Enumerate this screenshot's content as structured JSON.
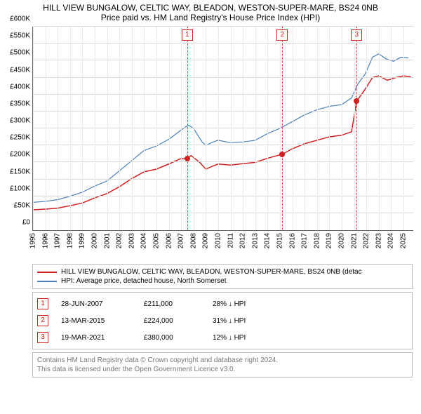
{
  "title": "HILL VIEW BUNGALOW, CELTIC WAY, BLEADON, WESTON-SUPER-MARE, BS24 0NB",
  "subtitle": "Price paid vs. HM Land Registry's House Price Index (HPI)",
  "chart": {
    "type": "line",
    "background_color": "#ffffff",
    "grid_color": "#d9d9d9",
    "grid_color_minor": "#eaeaea",
    "xlim": [
      1995,
      2025.8
    ],
    "ylim": [
      0,
      600000
    ],
    "ytick_step": 50000,
    "xtick_step": 1,
    "ylabel_prefix": "£",
    "ylabel_suffix": "K",
    "yticks": [
      {
        "v": 0,
        "label": "£0"
      },
      {
        "v": 50000,
        "label": "£50K"
      },
      {
        "v": 100000,
        "label": "£100K"
      },
      {
        "v": 150000,
        "label": "£150K"
      },
      {
        "v": 200000,
        "label": "£200K"
      },
      {
        "v": 250000,
        "label": "£250K"
      },
      {
        "v": 300000,
        "label": "£300K"
      },
      {
        "v": 350000,
        "label": "£350K"
      },
      {
        "v": 400000,
        "label": "£400K"
      },
      {
        "v": 450000,
        "label": "£450K"
      },
      {
        "v": 500000,
        "label": "£500K"
      },
      {
        "v": 550000,
        "label": "£550K"
      },
      {
        "v": 600000,
        "label": "£600K"
      }
    ],
    "xticks": [
      1995,
      1996,
      1997,
      1998,
      1999,
      2000,
      2001,
      2002,
      2003,
      2004,
      2005,
      2006,
      2007,
      2008,
      2009,
      2010,
      2011,
      2012,
      2013,
      2014,
      2015,
      2016,
      2017,
      2018,
      2019,
      2020,
      2021,
      2022,
      2023,
      2024,
      2025
    ],
    "series": [
      {
        "id": "property",
        "color": "#d02020",
        "width": 1.5,
        "label": "HILL VIEW BUNGALOW, CELTIC WAY, BLEADON, WESTON-SUPER-MARE, BS24 0NB (detac",
        "points": [
          [
            1995,
            60000
          ],
          [
            1996,
            62000
          ],
          [
            1997,
            65000
          ],
          [
            1998,
            72000
          ],
          [
            1999,
            80000
          ],
          [
            2000,
            95000
          ],
          [
            2001,
            108000
          ],
          [
            2002,
            128000
          ],
          [
            2003,
            152000
          ],
          [
            2004,
            172000
          ],
          [
            2005,
            180000
          ],
          [
            2006,
            195000
          ],
          [
            2006.9,
            210000
          ],
          [
            2007.49,
            211000
          ],
          [
            2007.8,
            220000
          ],
          [
            2008.5,
            200000
          ],
          [
            2009,
            180000
          ],
          [
            2009.5,
            188000
          ],
          [
            2010,
            195000
          ],
          [
            2011,
            192000
          ],
          [
            2012,
            196000
          ],
          [
            2013,
            200000
          ],
          [
            2014,
            212000
          ],
          [
            2015.2,
            224000
          ],
          [
            2016,
            240000
          ],
          [
            2017,
            255000
          ],
          [
            2018,
            265000
          ],
          [
            2019,
            275000
          ],
          [
            2020,
            280000
          ],
          [
            2020.8,
            290000
          ],
          [
            2021.21,
            380000
          ],
          [
            2021.8,
            410000
          ],
          [
            2022.5,
            450000
          ],
          [
            2023,
            455000
          ],
          [
            2023.7,
            442000
          ],
          [
            2024.4,
            450000
          ],
          [
            2025,
            455000
          ],
          [
            2025.6,
            452000
          ]
        ]
      },
      {
        "id": "hpi",
        "color": "#4a7fb8",
        "width": 1.2,
        "label": "HPI: Average price, detached house, North Somerset",
        "points": [
          [
            1995,
            82000
          ],
          [
            1996,
            85000
          ],
          [
            1997,
            90000
          ],
          [
            1998,
            100000
          ],
          [
            1999,
            112000
          ],
          [
            2000,
            130000
          ],
          [
            2001,
            145000
          ],
          [
            2002,
            175000
          ],
          [
            2003,
            205000
          ],
          [
            2004,
            235000
          ],
          [
            2005,
            248000
          ],
          [
            2006,
            268000
          ],
          [
            2007,
            295000
          ],
          [
            2007.6,
            310000
          ],
          [
            2008,
            300000
          ],
          [
            2008.7,
            260000
          ],
          [
            2009,
            250000
          ],
          [
            2009.6,
            260000
          ],
          [
            2010,
            265000
          ],
          [
            2010.7,
            260000
          ],
          [
            2011,
            258000
          ],
          [
            2012,
            260000
          ],
          [
            2013,
            265000
          ],
          [
            2014,
            285000
          ],
          [
            2015,
            300000
          ],
          [
            2016,
            320000
          ],
          [
            2017,
            340000
          ],
          [
            2018,
            355000
          ],
          [
            2019,
            365000
          ],
          [
            2020,
            370000
          ],
          [
            2020.8,
            390000
          ],
          [
            2021.3,
            430000
          ],
          [
            2021.9,
            460000
          ],
          [
            2022.5,
            510000
          ],
          [
            2023,
            520000
          ],
          [
            2023.6,
            505000
          ],
          [
            2024.2,
            498000
          ],
          [
            2024.8,
            510000
          ],
          [
            2025.4,
            508000
          ]
        ]
      }
    ],
    "markers": [
      {
        "num": "1",
        "x": 2007.49,
        "y": 211000
      },
      {
        "num": "2",
        "x": 2015.2,
        "y": 224000
      },
      {
        "num": "3",
        "x": 2021.21,
        "y": 380000
      }
    ]
  },
  "legend_label_property": "HILL VIEW BUNGALOW, CELTIC WAY, BLEADON, WESTON-SUPER-MARE, BS24 0NB (detac",
  "legend_label_hpi": "HPI: Average price, detached house, North Somerset",
  "sales": [
    {
      "num": "1",
      "date": "28-JUN-2007",
      "price": "£211,000",
      "diff": "28% ↓ HPI"
    },
    {
      "num": "2",
      "date": "13-MAR-2015",
      "price": "£224,000",
      "diff": "31% ↓ HPI"
    },
    {
      "num": "3",
      "date": "19-MAR-2021",
      "price": "£380,000",
      "diff": "12% ↓ HPI"
    }
  ],
  "attribution_line1": "Contains HM Land Registry data © Crown copyright and database right 2024.",
  "attribution_line2": "This data is licensed under the Open Government Licence v3.0."
}
